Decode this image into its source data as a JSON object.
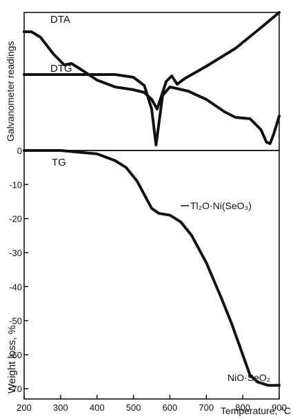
{
  "chart_data": {
    "type": "line",
    "xlabel": "Temperature, °C",
    "x_ticks": [
      200,
      300,
      400,
      500,
      600,
      700,
      800,
      900
    ],
    "xlim": [
      200,
      900
    ],
    "upper_panel": {
      "ylabel": "Galvanometer readings",
      "series": [
        {
          "name": "DTA",
          "points": [
            [
              200,
              0.86
            ],
            [
              220,
              0.86
            ],
            [
              245,
              0.82
            ],
            [
              280,
              0.7
            ],
            [
              310,
              0.62
            ],
            [
              330,
              0.63
            ],
            [
              360,
              0.58
            ],
            [
              400,
              0.51
            ],
            [
              450,
              0.46
            ],
            [
              500,
              0.44
            ],
            [
              530,
              0.42
            ],
            [
              550,
              0.37
            ],
            [
              565,
              0.3
            ],
            [
              575,
              0.38
            ],
            [
              590,
              0.5
            ],
            [
              605,
              0.54
            ],
            [
              620,
              0.48
            ],
            [
              640,
              0.52
            ],
            [
              700,
              0.61
            ],
            [
              780,
              0.74
            ],
            [
              850,
              0.89
            ],
            [
              900,
              1.0
            ]
          ]
        },
        {
          "name": "DTG",
          "points": [
            [
              200,
              0.55
            ],
            [
              450,
              0.55
            ],
            [
              500,
              0.53
            ],
            [
              530,
              0.47
            ],
            [
              550,
              0.3
            ],
            [
              562,
              0.04
            ],
            [
              570,
              0.2
            ],
            [
              580,
              0.4
            ],
            [
              600,
              0.46
            ],
            [
              650,
              0.43
            ],
            [
              700,
              0.37
            ],
            [
              750,
              0.28
            ],
            [
              780,
              0.24
            ],
            [
              820,
              0.23
            ],
            [
              850,
              0.15
            ],
            [
              865,
              0.06
            ],
            [
              875,
              0.05
            ],
            [
              885,
              0.12
            ],
            [
              900,
              0.25
            ]
          ]
        }
      ]
    },
    "lower_panel": {
      "ylabel": "Weight loss, %",
      "ylim": [
        -73,
        0
      ],
      "y_ticks": [
        0,
        -10,
        -20,
        -30,
        -40,
        -50,
        -60,
        -70
      ],
      "series": [
        {
          "name": "TG",
          "points": [
            [
              200,
              0
            ],
            [
              300,
              0
            ],
            [
              400,
              -1
            ],
            [
              450,
              -3
            ],
            [
              480,
              -5
            ],
            [
              510,
              -9
            ],
            [
              530,
              -13
            ],
            [
              550,
              -17
            ],
            [
              570,
              -18.5
            ],
            [
              600,
              -19
            ],
            [
              630,
              -21
            ],
            [
              660,
              -25
            ],
            [
              700,
              -33
            ],
            [
              740,
              -43
            ],
            [
              770,
              -51
            ],
            [
              800,
              -60
            ],
            [
              820,
              -66
            ],
            [
              840,
              -68
            ],
            [
              870,
              -69
            ],
            [
              900,
              -69
            ]
          ]
        }
      ]
    },
    "annotations": [
      {
        "text": "Tl₂O·Ni(SeO₃)",
        "x": 590,
        "y": -18
      },
      {
        "text": "NiO·SeO₂",
        "x": 790,
        "y": -68
      }
    ]
  },
  "labels": {
    "dta": "DTA",
    "dtg": "DTG",
    "tg": "TG"
  }
}
